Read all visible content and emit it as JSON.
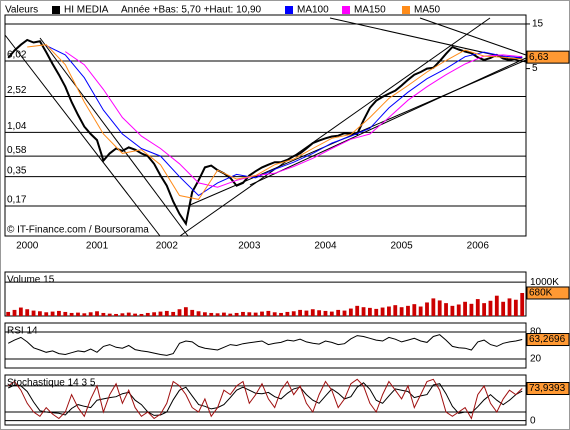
{
  "chart_data": [
    {
      "type": "line",
      "header_label": "Valeurs",
      "subtitle": "Année +Bas: 5,70 +Haut: 10,90",
      "annotation": "© IT-Finance.com / Boursorama",
      "log_scale": true,
      "grid": true,
      "label_box_color": "#ff9933",
      "x": [
        0,
        1,
        2,
        3,
        4,
        5,
        6,
        7,
        8,
        9,
        10,
        11,
        12,
        13,
        14,
        15,
        16,
        17,
        18,
        19,
        20,
        21,
        22,
        23,
        24,
        25,
        26,
        27,
        28,
        29,
        30,
        31,
        32,
        33,
        34,
        35,
        36,
        37,
        38,
        39,
        40,
        41,
        42,
        43,
        44,
        45,
        46,
        47,
        48,
        49,
        50,
        51,
        52,
        53,
        54,
        55,
        56,
        57,
        58,
        59,
        60,
        61,
        62,
        63,
        64,
        65,
        66,
        67,
        68,
        69,
        70,
        71,
        72,
        73,
        74,
        75,
        76,
        77,
        78,
        79,
        80,
        81
      ],
      "xlim": [
        -0.5,
        81.6
      ],
      "xticks": [
        {
          "value": 3,
          "label": "2000"
        },
        {
          "value": 14,
          "label": "2001"
        },
        {
          "value": 25,
          "label": "2002"
        },
        {
          "value": 38,
          "label": "2003"
        },
        {
          "value": 50,
          "label": "2004"
        },
        {
          "value": 62,
          "label": "2005"
        },
        {
          "value": 74,
          "label": "2006"
        }
      ],
      "ylim": [
        0.0813,
        18.7
      ],
      "yticks": [
        {
          "value": 6.02,
          "label": "6,02"
        },
        {
          "value": 2.52,
          "label": "2,52"
        },
        {
          "value": 1.04,
          "label": "1,04"
        },
        {
          "value": 0.58,
          "label": "0,58"
        },
        {
          "value": 0.35,
          "label": "0,35"
        },
        {
          "value": 0.17,
          "label": "0,17"
        }
      ],
      "y2lim": [
        0.0813,
        18.7
      ],
      "y2ticks": [
        15,
        5
      ],
      "series": [
        {
          "name": "HI MEDIA",
          "color": "#000000",
          "values": [
            6.5,
            7.8,
            9.0,
            10.1,
            9.5,
            9.8,
            7.5,
            5.6,
            4.3,
            3.2,
            2.2,
            1.6,
            1.2,
            1.0,
            0.86,
            0.52,
            0.62,
            0.7,
            0.66,
            0.72,
            0.68,
            0.62,
            0.58,
            0.48,
            0.36,
            0.28,
            0.19,
            0.14,
            0.11,
            0.24,
            0.32,
            0.44,
            0.46,
            0.41,
            0.38,
            0.34,
            0.28,
            0.3,
            0.36,
            0.4,
            0.44,
            0.47,
            0.5,
            0.5,
            0.53,
            0.58,
            0.62,
            0.7,
            0.8,
            0.85,
            0.9,
            0.94,
            0.96,
            1.02,
            1.0,
            1.0,
            1.4,
            1.9,
            2.27,
            2.5,
            2.7,
            2.9,
            3.3,
            3.8,
            4.3,
            4.6,
            5.0,
            5.1,
            6.0,
            7.2,
            8.5,
            8.0,
            7.6,
            7.3,
            6.6,
            6.2,
            6.5,
            7.0,
            6.4,
            6.2,
            6.4,
            6.63
          ],
          "value_labels": [
            null,
            null,
            null,
            null,
            null,
            null,
            null,
            null,
            null,
            null,
            null,
            null,
            null,
            null,
            null,
            null,
            null,
            null,
            null,
            null,
            null,
            null,
            null,
            null,
            null,
            null,
            null,
            null,
            null,
            null,
            null,
            null,
            null,
            null,
            null,
            null,
            null,
            null,
            null,
            null,
            null,
            null,
            null,
            null,
            null,
            null,
            null,
            null,
            null,
            null,
            null,
            null,
            null,
            null,
            null,
            null,
            null,
            null,
            null,
            null,
            null,
            null,
            null,
            null,
            null,
            null,
            null,
            null,
            null,
            null,
            null,
            null,
            null,
            null,
            null,
            null,
            null,
            null,
            null,
            null,
            null,
            "6,63"
          ]
        },
        {
          "name": "MA100",
          "color": "#0000ff",
          "x": [
            6,
            9,
            12,
            15,
            18,
            21,
            24,
            27,
            30,
            33,
            36,
            39,
            42,
            45,
            48,
            51,
            54,
            57,
            60,
            63,
            66,
            69,
            72,
            75,
            78,
            81
          ],
          "values": [
            8.8,
            7.0,
            4.0,
            1.8,
            1.0,
            0.7,
            0.58,
            0.35,
            0.22,
            0.3,
            0.37,
            0.34,
            0.42,
            0.5,
            0.62,
            0.8,
            0.95,
            1.15,
            1.9,
            2.8,
            3.9,
            5.0,
            6.7,
            7.5,
            6.8,
            6.5
          ]
        },
        {
          "name": "MA150",
          "color": "#ff00ff",
          "x": [
            9,
            12,
            15,
            18,
            21,
            24,
            27,
            30,
            33,
            36,
            39,
            42,
            45,
            48,
            51,
            54,
            57,
            60,
            63,
            66,
            69,
            72,
            75,
            78,
            81
          ],
          "values": [
            7.6,
            5.5,
            3.0,
            1.5,
            0.95,
            0.7,
            0.48,
            0.3,
            0.27,
            0.32,
            0.36,
            0.38,
            0.45,
            0.55,
            0.7,
            0.88,
            1.0,
            1.5,
            2.3,
            3.2,
            4.3,
            5.6,
            6.8,
            7.0,
            6.7
          ]
        },
        {
          "name": "MA50",
          "color": "#ff8c1a",
          "x": [
            3,
            6,
            9,
            12,
            15,
            18,
            21,
            24,
            27,
            30,
            33,
            36,
            39,
            42,
            45,
            48,
            51,
            54,
            57,
            60,
            63,
            66,
            69,
            72,
            75,
            78,
            81
          ],
          "values": [
            8.5,
            9.0,
            5.5,
            2.2,
            1.0,
            0.62,
            0.68,
            0.47,
            0.22,
            0.2,
            0.41,
            0.33,
            0.36,
            0.47,
            0.54,
            0.7,
            0.9,
            0.99,
            1.5,
            2.4,
            3.3,
            4.6,
            6.1,
            7.9,
            6.8,
            6.6,
            6.3
          ]
        }
      ]
    },
    {
      "type": "bar",
      "title": "Volume 15",
      "color": "#cc0000",
      "label_box_color": "#ff9933",
      "xlim": [
        -0.5,
        81.6
      ],
      "ylim": [
        0,
        1300
      ],
      "yticks": [
        {
          "value": 1000,
          "label": "1000K"
        }
      ],
      "values": [
        120,
        180,
        250,
        200,
        160,
        140,
        110,
        130,
        150,
        120,
        90,
        100,
        80,
        110,
        140,
        90,
        70,
        60,
        80,
        100,
        70,
        60,
        90,
        110,
        130,
        150,
        120,
        200,
        260,
        180,
        140,
        110,
        90,
        80,
        100,
        70,
        90,
        120,
        110,
        100,
        130,
        150,
        110,
        90,
        120,
        140,
        180,
        160,
        200,
        170,
        150,
        130,
        180,
        160,
        220,
        300,
        260,
        240,
        210,
        250,
        280,
        320,
        260,
        300,
        350,
        280,
        400,
        520,
        460,
        380,
        300,
        340,
        420,
        360,
        500,
        380,
        450,
        600,
        420,
        520,
        480,
        680
      ],
      "value_labels": [
        null,
        null,
        null,
        null,
        null,
        null,
        null,
        null,
        null,
        null,
        null,
        null,
        null,
        null,
        null,
        null,
        null,
        null,
        null,
        null,
        null,
        null,
        null,
        null,
        null,
        null,
        null,
        null,
        null,
        null,
        null,
        null,
        null,
        null,
        null,
        null,
        null,
        null,
        null,
        null,
        null,
        null,
        null,
        null,
        null,
        null,
        null,
        null,
        null,
        null,
        null,
        null,
        null,
        null,
        null,
        null,
        null,
        null,
        null,
        null,
        null,
        null,
        null,
        null,
        null,
        null,
        null,
        null,
        null,
        null,
        null,
        null,
        null,
        null,
        null,
        null,
        null,
        null,
        null,
        null,
        null,
        "680K"
      ]
    },
    {
      "type": "line",
      "title": "RSI 14",
      "label_box_color": "#ff9933",
      "xlim": [
        -0.5,
        81.6
      ],
      "ylim": [
        0,
        100
      ],
      "yticks": [
        80,
        20
      ],
      "series": [
        {
          "color": "#000000",
          "values": [
            55,
            62,
            68,
            58,
            45,
            40,
            35,
            38,
            32,
            30,
            34,
            38,
            36,
            42,
            35,
            48,
            52,
            46,
            44,
            50,
            41,
            38,
            36,
            33,
            30,
            28,
            32,
            55,
            60,
            58,
            48,
            44,
            42,
            40,
            46,
            52,
            50,
            54,
            56,
            58,
            60,
            52,
            55,
            57,
            62,
            60,
            64,
            58,
            55,
            53,
            60,
            57,
            52,
            54,
            65,
            72,
            70,
            66,
            62,
            60,
            68,
            64,
            58,
            62,
            66,
            60,
            57,
            70,
            74,
            62,
            48,
            45,
            44,
            40,
            58,
            62,
            52,
            48,
            55,
            58,
            60,
            63.2696
          ],
          "value_labels": [
            null,
            null,
            null,
            null,
            null,
            null,
            null,
            null,
            null,
            null,
            null,
            null,
            null,
            null,
            null,
            null,
            null,
            null,
            null,
            null,
            null,
            null,
            null,
            null,
            null,
            null,
            null,
            null,
            null,
            null,
            null,
            null,
            null,
            null,
            null,
            null,
            null,
            null,
            null,
            null,
            null,
            null,
            null,
            null,
            null,
            null,
            null,
            null,
            null,
            null,
            null,
            null,
            null,
            null,
            null,
            null,
            null,
            null,
            null,
            null,
            null,
            null,
            null,
            null,
            null,
            null,
            null,
            null,
            null,
            null,
            null,
            null,
            null,
            null,
            null,
            null,
            null,
            null,
            null,
            null,
            null,
            "63,2696"
          ]
        }
      ]
    },
    {
      "type": "line",
      "title": "Stochastique 14 3 5",
      "label_box_color": "#ff9933",
      "xlim": [
        -0.5,
        81.6
      ],
      "ylim": [
        -10,
        105
      ],
      "yticks": [
        0
      ],
      "ref_lines": [
        20,
        80
      ],
      "series": [
        {
          "color": "#000000",
          "values": [
            75,
            82,
            80,
            67,
            43,
            23,
            20,
            18,
            17,
            13,
            28,
            37,
            33,
            30,
            47,
            50,
            53,
            55,
            62,
            65,
            47,
            37,
            20,
            12,
            13,
            20,
            48,
            70,
            77,
            57,
            37,
            33,
            27,
            30,
            37,
            53,
            70,
            77,
            70,
            63,
            62,
            65,
            55,
            50,
            63,
            73,
            77,
            60,
            47,
            40,
            57,
            73,
            63,
            50,
            55,
            77,
            87,
            72,
            47,
            40,
            57,
            73,
            70,
            67,
            53,
            57,
            60,
            82,
            85,
            62,
            33,
            17,
            20,
            18,
            32,
            48,
            60,
            47,
            37,
            47,
            60,
            68
          ]
        },
        {
          "color": "#a01010",
          "values": [
            80,
            90,
            70,
            40,
            20,
            10,
            30,
            15,
            5,
            20,
            60,
            30,
            10,
            50,
            80,
            20,
            60,
            85,
            40,
            70,
            30,
            10,
            20,
            5,
            15,
            40,
            90,
            80,
            60,
            30,
            20,
            50,
            10,
            30,
            70,
            60,
            80,
            90,
            40,
            60,
            85,
            50,
            30,
            70,
            90,
            60,
            80,
            40,
            20,
            60,
            90,
            70,
            30,
            50,
            85,
            95,
            80,
            40,
            20,
            60,
            90,
            70,
            50,
            80,
            30,
            60,
            90,
            95,
            70,
            20,
            10,
            20,
            30,
            5,
            60,
            80,
            40,
            20,
            50,
            70,
            60,
            73.9393
          ],
          "value_labels": [
            null,
            null,
            null,
            null,
            null,
            null,
            null,
            null,
            null,
            null,
            null,
            null,
            null,
            null,
            null,
            null,
            null,
            null,
            null,
            null,
            null,
            null,
            null,
            null,
            null,
            null,
            null,
            null,
            null,
            null,
            null,
            null,
            null,
            null,
            null,
            null,
            null,
            null,
            null,
            null,
            null,
            null,
            null,
            null,
            null,
            null,
            null,
            null,
            null,
            null,
            null,
            null,
            null,
            null,
            null,
            null,
            null,
            null,
            null,
            null,
            null,
            null,
            null,
            null,
            null,
            null,
            null,
            null,
            null,
            null,
            null,
            null,
            null,
            null,
            null,
            null,
            null,
            null,
            null,
            null,
            null,
            "73,9393"
          ]
        }
      ]
    }
  ]
}
